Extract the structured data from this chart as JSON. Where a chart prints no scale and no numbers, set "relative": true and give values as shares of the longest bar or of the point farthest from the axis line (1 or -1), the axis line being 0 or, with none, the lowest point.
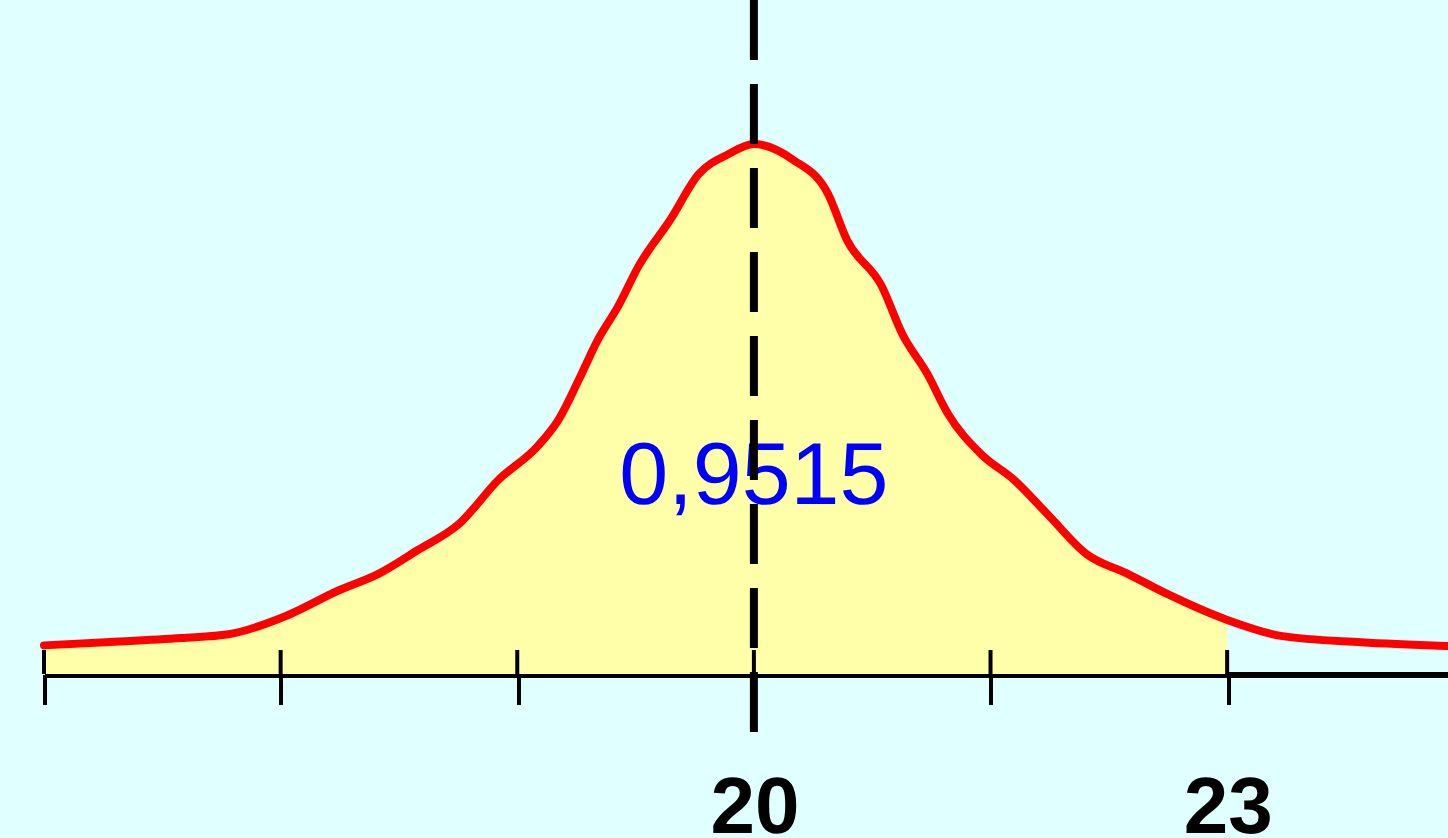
{
  "chart_data": {
    "type": "line",
    "relative": true,
    "xlim": [
      15.5,
      24.4
    ],
    "xticks": [
      {
        "value": 15.5,
        "label": null
      },
      {
        "value": 17,
        "label": null
      },
      {
        "value": 18.5,
        "label": null
      },
      20,
      {
        "value": 21.5,
        "label": null
      },
      23
    ],
    "series": [
      {
        "type": "area",
        "color": "#ffffaa",
        "x": [
          15.5,
          15.89,
          16.37,
          16.67,
          17.03,
          17.37,
          17.62,
          17.87,
          18.13,
          18.38,
          18.63,
          18.76,
          18.89,
          19.01,
          19.14,
          19.27,
          19.47,
          19.65,
          19.84,
          20,
          20.25,
          20.47,
          20.59,
          20.81,
          20.94,
          21.1,
          21.23,
          21.44,
          21.65,
          21.86,
          22.11,
          22.37,
          22.62,
          23
        ],
        "values": [
          0.054,
          0.06,
          0.068,
          0.075,
          0.109,
          0.158,
          0.189,
          0.234,
          0.283,
          0.366,
          0.43,
          0.479,
          0.555,
          0.63,
          0.694,
          0.77,
          0.857,
          0.943,
          0.981,
          1,
          0.97,
          0.906,
          0.819,
          0.732,
          0.642,
          0.566,
          0.491,
          0.415,
          0.366,
          0.302,
          0.226,
          0.189,
          0.151,
          0.102
        ]
      },
      {
        "color": "#ff0000",
        "x": [
          15.5,
          15.89,
          16.37,
          16.67,
          17.03,
          17.37,
          17.62,
          17.87,
          18.13,
          18.38,
          18.63,
          18.76,
          18.89,
          19.01,
          19.14,
          19.27,
          19.47,
          19.65,
          19.84,
          20,
          20.25,
          20.47,
          20.59,
          20.81,
          20.94,
          21.1,
          21.23,
          21.44,
          21.65,
          21.86,
          22.11,
          22.37,
          22.62,
          23,
          23.34,
          23.85,
          24.39
        ],
        "values": [
          0.054,
          0.06,
          0.068,
          0.075,
          0.109,
          0.158,
          0.189,
          0.234,
          0.283,
          0.366,
          0.43,
          0.479,
          0.555,
          0.63,
          0.694,
          0.77,
          0.857,
          0.943,
          0.981,
          1,
          0.97,
          0.906,
          0.819,
          0.732,
          0.642,
          0.566,
          0.491,
          0.415,
          0.366,
          0.302,
          0.226,
          0.189,
          0.151,
          0.102,
          0.072,
          0.06,
          0.053
        ]
      }
    ],
    "ref_lines": [
      {
        "axis": "x",
        "value": 20,
        "line_style": "dashed",
        "color": "#000000"
      }
    ],
    "annotations": [
      {
        "text": "0,9515",
        "x": 20,
        "y": 0.37
      }
    ],
    "grid": false
  }
}
